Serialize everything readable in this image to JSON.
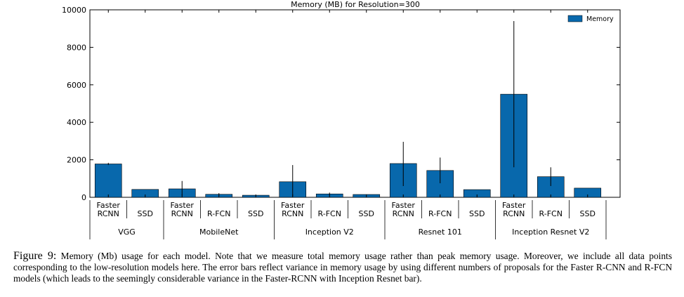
{
  "chart_data": {
    "type": "bar",
    "title": "Memory (MB) for Resolution=300",
    "ylim": [
      0,
      10000
    ],
    "yticks": [
      0,
      2000,
      4000,
      6000,
      8000,
      10000
    ],
    "legend": {
      "placement": "top-right",
      "entries": [
        "Memory"
      ]
    },
    "grid": false,
    "color": "#0868ac",
    "groups": [
      {
        "name": "VGG",
        "bars": [
          {
            "label": [
              "Faster",
              "RCNN"
            ],
            "value": 1780,
            "err_low": 1720,
            "err_high": 1840
          },
          {
            "label": [
              "SSD"
            ],
            "value": 420
          }
        ]
      },
      {
        "name": "MobileNet",
        "bars": [
          {
            "label": [
              "Faster",
              "RCNN"
            ],
            "value": 450,
            "err_low": 100,
            "err_high": 870
          },
          {
            "label": [
              "R-FCN"
            ],
            "value": 160,
            "err_low": 100,
            "err_high": 220
          },
          {
            "label": [
              "SSD"
            ],
            "value": 110
          }
        ]
      },
      {
        "name": "Inception V2",
        "bars": [
          {
            "label": [
              "Faster",
              "RCNN"
            ],
            "value": 830,
            "err_low": 50,
            "err_high": 1720
          },
          {
            "label": [
              "R-FCN"
            ],
            "value": 180,
            "err_low": 120,
            "err_high": 250
          },
          {
            "label": [
              "SSD"
            ],
            "value": 150
          }
        ]
      },
      {
        "name": "Resnet 101",
        "bars": [
          {
            "label": [
              "Faster",
              "RCNN"
            ],
            "value": 1800,
            "err_low": 600,
            "err_high": 2960
          },
          {
            "label": [
              "R-FCN"
            ],
            "value": 1430,
            "err_low": 750,
            "err_high": 2120
          },
          {
            "label": [
              "SSD"
            ],
            "value": 410
          }
        ]
      },
      {
        "name": "Inception Resnet V2",
        "bars": [
          {
            "label": [
              "Faster",
              "RCNN"
            ],
            "value": 5500,
            "err_low": 1600,
            "err_high": 9400
          },
          {
            "label": [
              "R-FCN"
            ],
            "value": 1100,
            "err_low": 600,
            "err_high": 1600
          },
          {
            "label": [
              "SSD"
            ],
            "value": 490
          }
        ]
      }
    ]
  },
  "caption": {
    "label": "Figure 9:",
    "text": "Memory (Mb) usage for each model. Note that we measure total memory usage rather than peak memory usage. Moreover, we include all data points corresponding to the low-resolution models here. The error bars reflect variance in memory usage by using different numbers of proposals for the Faster R-CNN and R-FCN models (which leads to the seemingly considerable variance in the Faster-RCNN with Inception Resnet bar)."
  }
}
